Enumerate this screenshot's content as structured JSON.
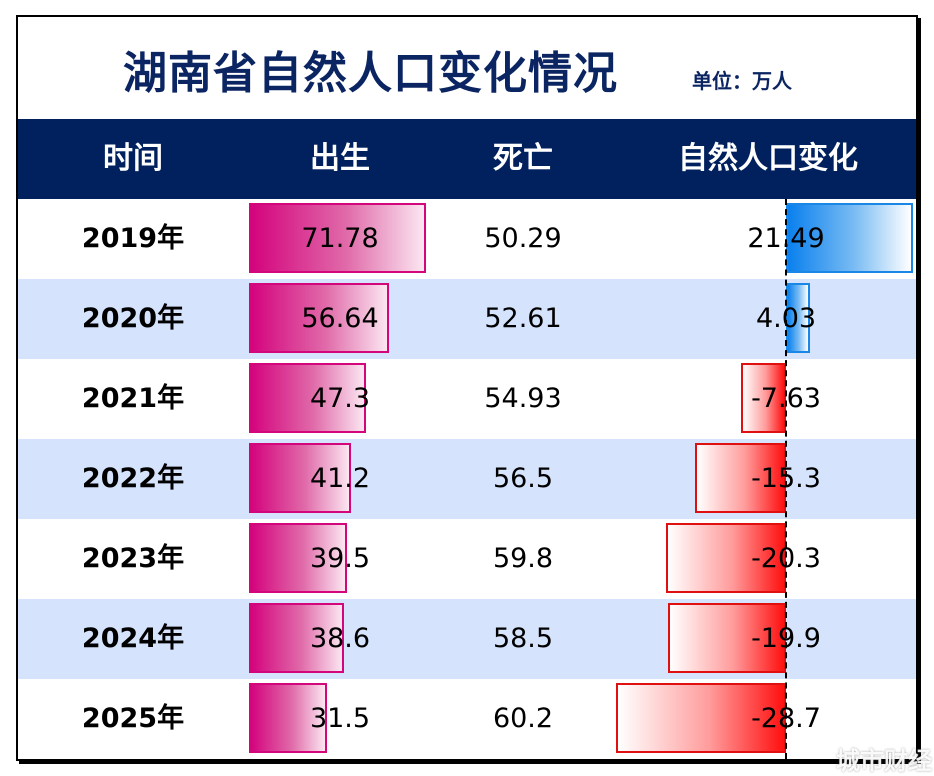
{
  "title": "湖南省自然人口变化情况",
  "unit": "单位：万人",
  "watermark": "城市财经",
  "headers": [
    "时间",
    "出生",
    "死亡",
    "自然人口变化"
  ],
  "colors": {
    "header_bg": "#00215e",
    "title": "#0b2562",
    "row_alt": "#d5e3fc",
    "birth_bar": "#d4037d",
    "positive_bar": "#0a80ee",
    "negative_bar": "#ff1010"
  },
  "chart_data": {
    "type": "table",
    "title": "湖南省自然人口变化情况",
    "unit": "单位：万人",
    "columns": [
      "时间",
      "出生",
      "死亡",
      "自然人口变化"
    ],
    "categories": [
      "2019年",
      "2020年",
      "2021年",
      "2022年",
      "2023年",
      "2024年",
      "2025年"
    ],
    "birth_labels": [
      "71.78",
      "56.64",
      "47.3",
      "41.2",
      "39.5",
      "38.6",
      "31.5"
    ],
    "death_labels": [
      "50.29",
      "52.61",
      "54.93",
      "56.5",
      "59.8",
      "58.5",
      "60.2"
    ],
    "change_labels": [
      "21.49",
      "4.03",
      "-7.63",
      "-15.3",
      "-20.3",
      "-19.9",
      "-28.7"
    ],
    "series": [
      {
        "name": "出生",
        "values": [
          71.78,
          56.64,
          47.3,
          41.2,
          39.5,
          38.6,
          31.5
        ],
        "display": "data-bar"
      },
      {
        "name": "死亡",
        "values": [
          50.29,
          52.61,
          54.93,
          56.5,
          59.8,
          58.5,
          60.2
        ],
        "display": "text"
      },
      {
        "name": "自然人口变化",
        "values": [
          21.49,
          4.03,
          -7.63,
          -15.3,
          -20.3,
          -19.9,
          -28.7
        ],
        "display": "diverging-data-bar"
      }
    ]
  }
}
